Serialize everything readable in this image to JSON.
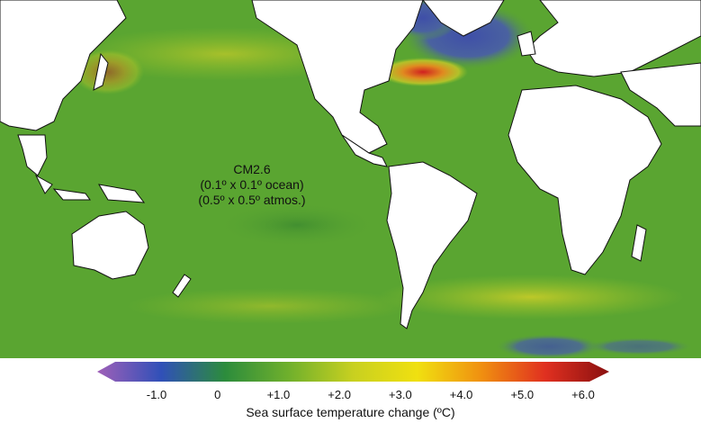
{
  "map": {
    "model_label": {
      "line1": "CM2.6",
      "line2": "(0.1º x 0.1º ocean)",
      "line3": "(0.5º x 0.5º atmos.)"
    },
    "colors": {
      "ocean_base": "#5aa531",
      "ocean_warm": "#9cc528",
      "ocean_hot": "#e0b020",
      "ocean_extreme": "#d02020",
      "ocean_cool": "#4a58a8",
      "land": "#ffffff",
      "coast": "#111111"
    }
  },
  "colorbar": {
    "title": "Sea surface temperature change (ºC)",
    "ticks": [
      "-1.0",
      "0",
      "+1.0",
      "+2.0",
      "+3.0",
      "+4.0",
      "+5.0",
      "+6.0"
    ],
    "range": [
      -1.5,
      6.5
    ],
    "colors": [
      "#a060b8",
      "#3050b8",
      "#2c8c3c",
      "#70b02c",
      "#c8d020",
      "#f0e010",
      "#f09010",
      "#e03020",
      "#8a1010"
    ]
  }
}
